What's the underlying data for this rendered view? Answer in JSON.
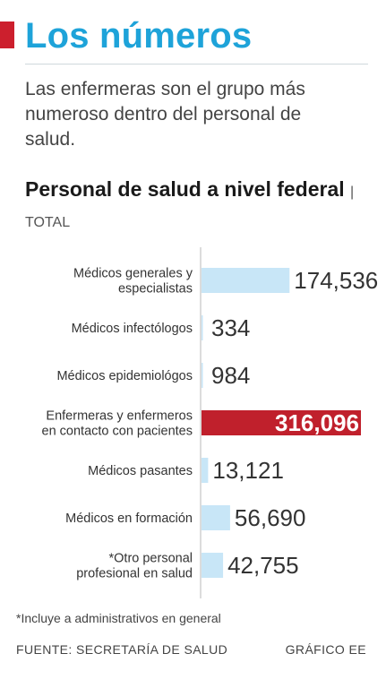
{
  "header": {
    "title": "Los números",
    "subtitle": "Las enfermeras son el grupo más numeroso dentro del personal de salud."
  },
  "colors": {
    "accent": "#cc1f2d",
    "title": "#1ea3d9",
    "bar": "#c8e6f7",
    "highlight": "#c0202c"
  },
  "chart_data": {
    "type": "bar",
    "orientation": "horizontal",
    "title": "Personal de salud a nivel federal",
    "unit": "TOTAL",
    "categories": [
      [
        "Médicos generales y",
        "especialistas"
      ],
      [
        "Médicos infectólogos"
      ],
      [
        "Médicos epidemiológos"
      ],
      [
        "Enfermeras y enfermeros",
        "en contacto con pacientes"
      ],
      [
        "Médicos pasantes"
      ],
      [
        "Médicos en formación"
      ],
      [
        "*Otro personal",
        "profesional en salud"
      ]
    ],
    "values": [
      174536,
      334,
      984,
      316096,
      13121,
      56690,
      42755
    ],
    "value_labels": [
      "174,536",
      "334",
      "984",
      "316,096",
      "13,121",
      "56,690",
      "42,755"
    ],
    "highlight_index": 3,
    "xlim": [
      0,
      316096
    ]
  },
  "footer": {
    "footnote": "*Incluye a administrativos en general",
    "source": "FUENTE: SECRETARÍA DE SALUD",
    "credit": "GRÁFICO EE"
  }
}
